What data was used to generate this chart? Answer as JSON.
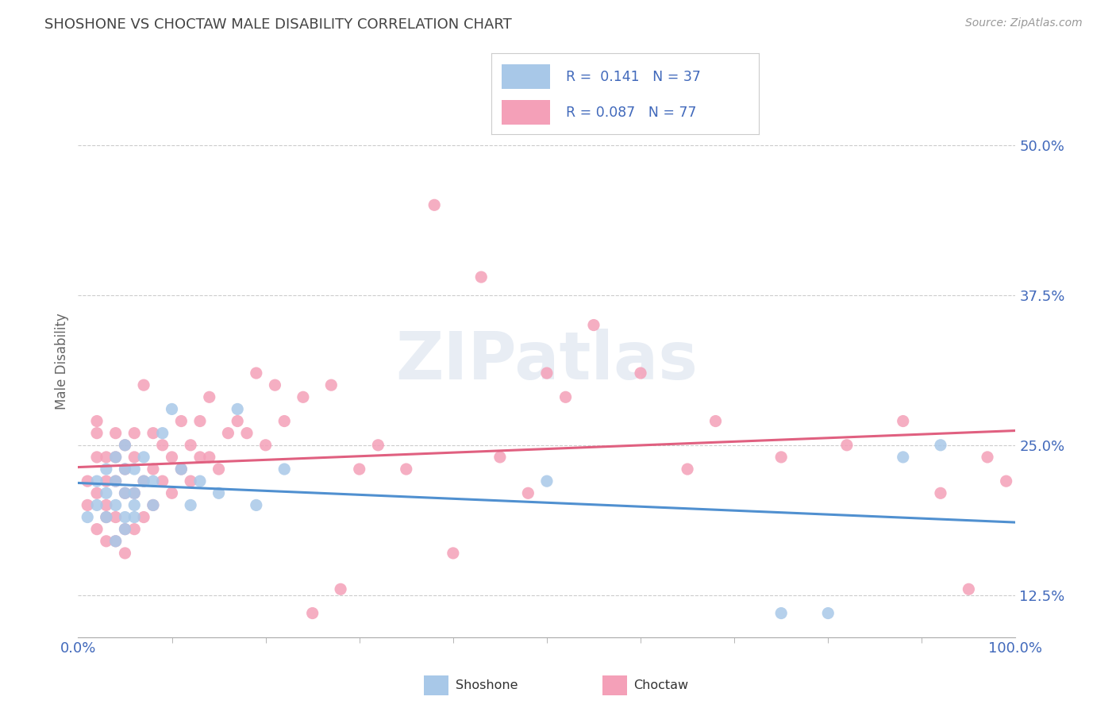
{
  "title": "SHOSHONE VS CHOCTAW MALE DISABILITY CORRELATION CHART",
  "source": "Source: ZipAtlas.com",
  "ylabel": "Male Disability",
  "xlim": [
    0.0,
    1.0
  ],
  "ylim": [
    0.09,
    0.55
  ],
  "yticks": [
    0.125,
    0.25,
    0.375,
    0.5
  ],
  "ytick_labels": [
    "12.5%",
    "25.0%",
    "37.5%",
    "50.0%"
  ],
  "xticks": [
    0.0,
    1.0
  ],
  "xtick_labels": [
    "0.0%",
    "100.0%"
  ],
  "shoshone_color": "#a8c8e8",
  "choctaw_color": "#f4a0b8",
  "shoshone_line_color": "#5090d0",
  "choctaw_line_color": "#e06080",
  "shoshone_R": 0.141,
  "shoshone_N": 37,
  "choctaw_R": 0.087,
  "choctaw_N": 77,
  "title_color": "#444444",
  "legend_text_color": "#4169bb",
  "shoshone_x": [
    0.01,
    0.02,
    0.02,
    0.03,
    0.03,
    0.03,
    0.04,
    0.04,
    0.04,
    0.04,
    0.05,
    0.05,
    0.05,
    0.05,
    0.05,
    0.06,
    0.06,
    0.06,
    0.06,
    0.07,
    0.07,
    0.08,
    0.08,
    0.09,
    0.1,
    0.11,
    0.12,
    0.13,
    0.15,
    0.17,
    0.19,
    0.22,
    0.5,
    0.75,
    0.8,
    0.88,
    0.92
  ],
  "shoshone_y": [
    0.19,
    0.2,
    0.22,
    0.19,
    0.21,
    0.23,
    0.17,
    0.2,
    0.22,
    0.24,
    0.18,
    0.19,
    0.21,
    0.23,
    0.25,
    0.19,
    0.21,
    0.23,
    0.2,
    0.22,
    0.24,
    0.2,
    0.22,
    0.26,
    0.28,
    0.23,
    0.2,
    0.22,
    0.21,
    0.28,
    0.2,
    0.23,
    0.22,
    0.11,
    0.11,
    0.24,
    0.25
  ],
  "choctaw_x": [
    0.01,
    0.01,
    0.02,
    0.02,
    0.02,
    0.02,
    0.02,
    0.03,
    0.03,
    0.03,
    0.03,
    0.03,
    0.04,
    0.04,
    0.04,
    0.04,
    0.04,
    0.05,
    0.05,
    0.05,
    0.05,
    0.05,
    0.06,
    0.06,
    0.06,
    0.06,
    0.07,
    0.07,
    0.07,
    0.08,
    0.08,
    0.08,
    0.09,
    0.09,
    0.1,
    0.1,
    0.11,
    0.11,
    0.12,
    0.12,
    0.13,
    0.13,
    0.14,
    0.14,
    0.15,
    0.16,
    0.17,
    0.18,
    0.19,
    0.2,
    0.21,
    0.22,
    0.24,
    0.25,
    0.27,
    0.28,
    0.3,
    0.32,
    0.35,
    0.38,
    0.4,
    0.43,
    0.45,
    0.48,
    0.5,
    0.52,
    0.55,
    0.6,
    0.65,
    0.68,
    0.75,
    0.82,
    0.88,
    0.92,
    0.95,
    0.97,
    0.99
  ],
  "choctaw_y": [
    0.2,
    0.22,
    0.18,
    0.21,
    0.24,
    0.26,
    0.27,
    0.17,
    0.2,
    0.22,
    0.24,
    0.19,
    0.17,
    0.19,
    0.22,
    0.24,
    0.26,
    0.16,
    0.18,
    0.21,
    0.23,
    0.25,
    0.18,
    0.21,
    0.24,
    0.26,
    0.19,
    0.22,
    0.3,
    0.2,
    0.23,
    0.26,
    0.22,
    0.25,
    0.21,
    0.24,
    0.23,
    0.27,
    0.22,
    0.25,
    0.24,
    0.27,
    0.24,
    0.29,
    0.23,
    0.26,
    0.27,
    0.26,
    0.31,
    0.25,
    0.3,
    0.27,
    0.29,
    0.11,
    0.3,
    0.13,
    0.23,
    0.25,
    0.23,
    0.45,
    0.16,
    0.39,
    0.24,
    0.21,
    0.31,
    0.29,
    0.35,
    0.31,
    0.23,
    0.27,
    0.24,
    0.25,
    0.27,
    0.21,
    0.13,
    0.24,
    0.22
  ]
}
